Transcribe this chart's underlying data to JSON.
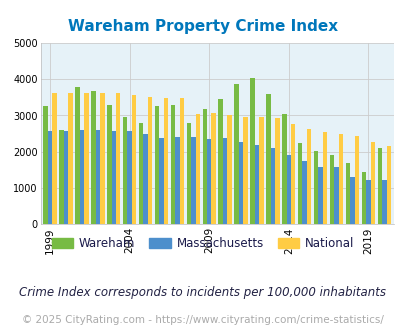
{
  "title": "Wareham Property Crime Index",
  "subtitle": "Crime Index corresponds to incidents per 100,000 inhabitants",
  "footer": "© 2025 CityRating.com - https://www.cityrating.com/crime-statistics/",
  "years": [
    1999,
    2000,
    2001,
    2002,
    2003,
    2004,
    2005,
    2006,
    2007,
    2008,
    2009,
    2010,
    2011,
    2012,
    2013,
    2014,
    2015,
    2016,
    2017,
    2018,
    2019,
    2020
  ],
  "wareham": [
    3250,
    2600,
    3780,
    3680,
    3300,
    2950,
    2780,
    3250,
    3280,
    2800,
    3180,
    3450,
    3870,
    4040,
    3580,
    3050,
    2230,
    2020,
    1920,
    1700,
    1450,
    2100
  ],
  "massachusetts": [
    2570,
    2580,
    2600,
    2590,
    2580,
    2560,
    2490,
    2390,
    2400,
    2410,
    2350,
    2370,
    2280,
    2190,
    2100,
    1920,
    1760,
    1590,
    1570,
    1310,
    1230,
    1220
  ],
  "national": [
    3610,
    3620,
    3630,
    3620,
    3610,
    3560,
    3520,
    3490,
    3480,
    3050,
    3070,
    3000,
    2960,
    2950,
    2940,
    2760,
    2640,
    2550,
    2490,
    2440,
    2270,
    2150
  ],
  "ylim": [
    0,
    5000
  ],
  "yticks": [
    0,
    1000,
    2000,
    3000,
    4000,
    5000
  ],
  "xtick_years": [
    1999,
    2004,
    2009,
    2014,
    2019
  ],
  "color_wareham": "#77bb44",
  "color_massachusetts": "#4d8fcc",
  "color_national": "#ffcc44",
  "background_plot": "#e6f2f8",
  "background_fig": "#ffffff",
  "grid_color": "#cccccc",
  "title_color": "#0077bb",
  "title_fontsize": 11,
  "subtitle_fontsize": 8.5,
  "footer_fontsize": 7.5,
  "footer_color": "#aaaaaa",
  "subtitle_color": "#222244",
  "legend_fontsize": 8.5
}
